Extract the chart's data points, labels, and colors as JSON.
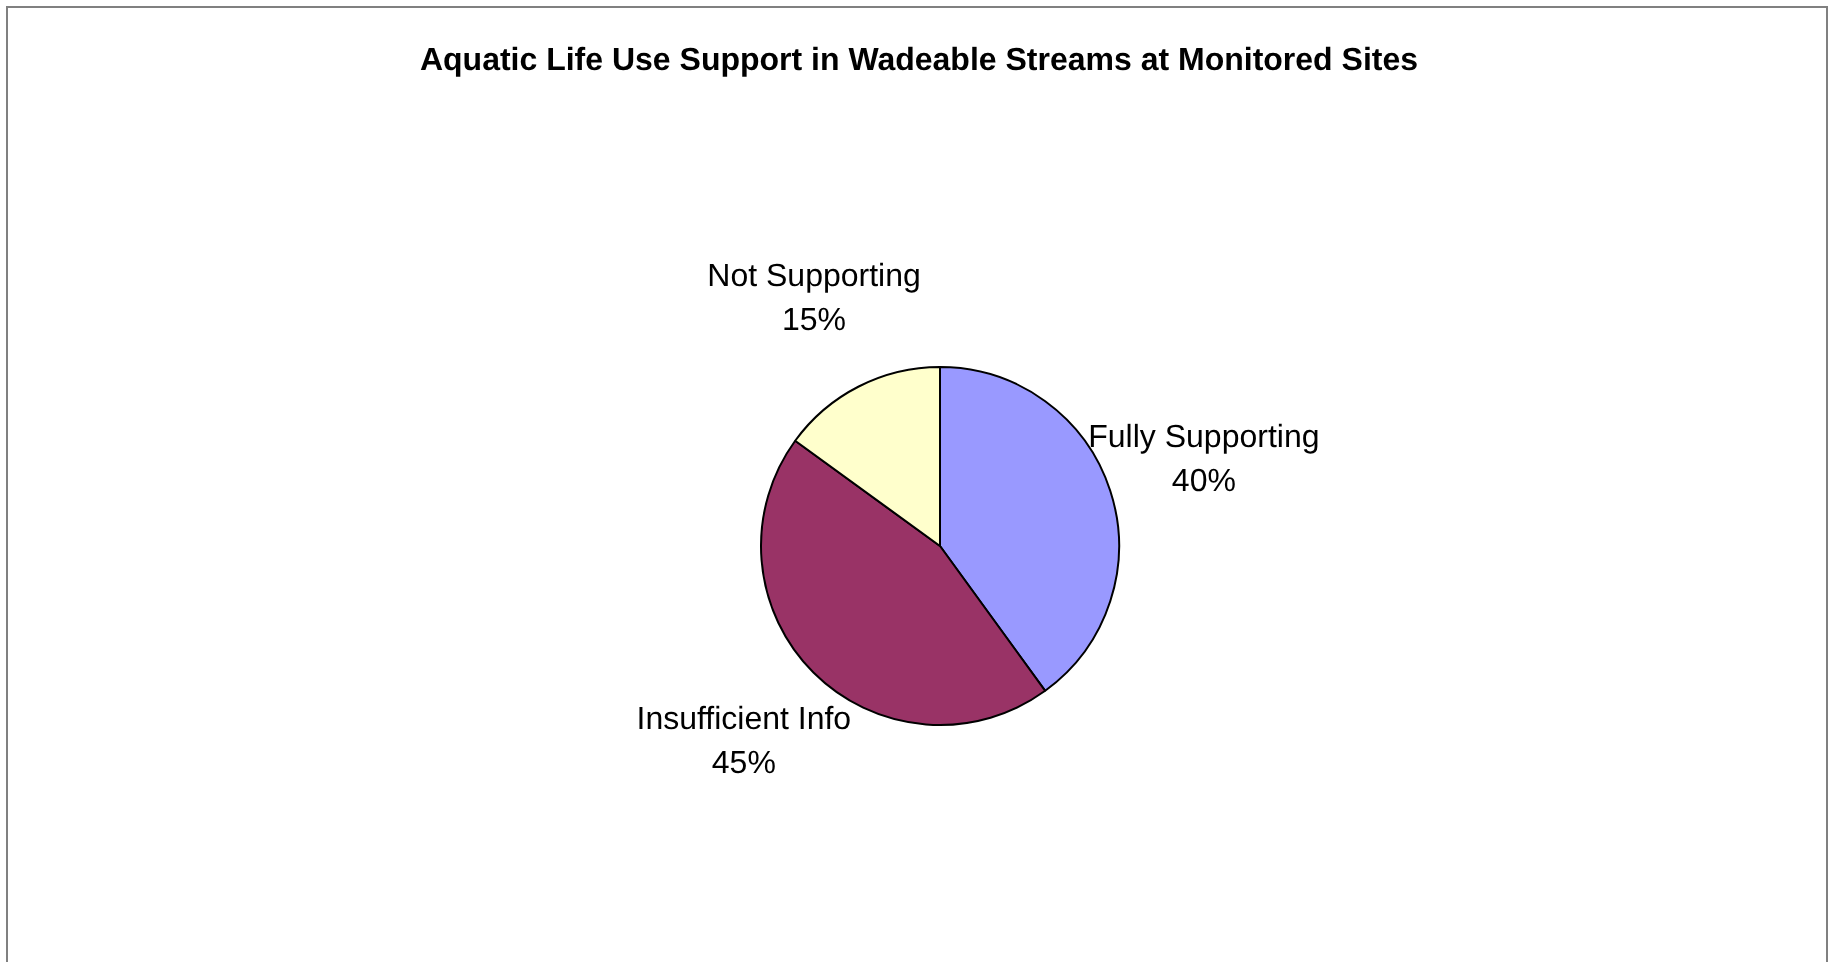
{
  "chart_data": {
    "type": "pie",
    "title": "Aquatic Life Use Support in Wadeable Streams at Monitored Sites",
    "categories": [
      "Fully Supporting",
      "Insufficient Info",
      "Not Supporting"
    ],
    "values": [
      40,
      45,
      15
    ],
    "colors": [
      "#9999ff",
      "#993366",
      "#ffffcc"
    ],
    "value_labels": [
      "40%",
      "45%",
      "15%"
    ],
    "legend": false
  }
}
